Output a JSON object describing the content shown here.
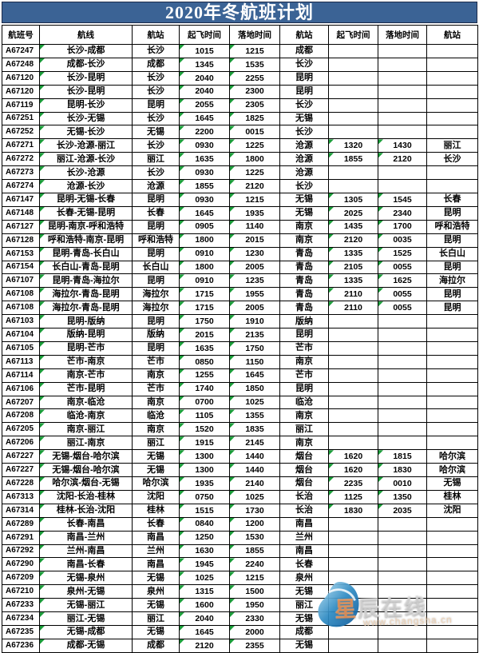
{
  "title": "2020年冬航班计划",
  "colors": {
    "title_bar": "#3b6395",
    "flag_triangle": "#1b9e3a"
  },
  "watermark": {
    "brand": "星辰在线",
    "url": "www.changsha.cn"
  },
  "table": {
    "columns": [
      "航班号",
      "航线",
      "航站",
      "起飞时间",
      "落地时间",
      "航站",
      "起飞时间",
      "落地时间",
      "航站"
    ],
    "rows": [
      [
        "A67247",
        "长沙-成都",
        "长沙",
        "1015",
        "1215",
        "成都",
        "",
        "",
        ""
      ],
      [
        "A67248",
        "成都-长沙",
        "成都",
        "1345",
        "1535",
        "长沙",
        "",
        "",
        ""
      ],
      [
        "A67120",
        "长沙-昆明",
        "长沙",
        "2040",
        "2255",
        "昆明",
        "",
        "",
        ""
      ],
      [
        "A67120",
        "长沙-昆明",
        "长沙",
        "2040",
        "2300",
        "昆明",
        "",
        "",
        ""
      ],
      [
        "A67119",
        "昆明-长沙",
        "昆明",
        "2055",
        "2305",
        "长沙",
        "",
        "",
        ""
      ],
      [
        "A67251",
        "长沙-无锡",
        "长沙",
        "1645",
        "1825",
        "无锡",
        "",
        "",
        ""
      ],
      [
        "A67252",
        "无锡-长沙",
        "无锡",
        "2200",
        "0015",
        "长沙",
        "",
        "",
        ""
      ],
      [
        "A67271",
        "长沙-沧源-丽江",
        "长沙",
        "0930",
        "1225",
        "沧源",
        "1320",
        "1430",
        "丽江"
      ],
      [
        "A67272",
        "丽江-沧源-长沙",
        "丽江",
        "1635",
        "1800",
        "沧源",
        "1855",
        "2120",
        "长沙"
      ],
      [
        "A67273",
        "长沙-沧源",
        "长沙",
        "0930",
        "1225",
        "沧源",
        "",
        "",
        ""
      ],
      [
        "A67274",
        "沧源-长沙",
        "沧源",
        "1855",
        "2120",
        "长沙",
        "",
        "",
        ""
      ],
      [
        "A67147",
        "昆明-无锡-长春",
        "昆明",
        "0930",
        "1215",
        "无锡",
        "1305",
        "1545",
        "长春"
      ],
      [
        "A67148",
        "长春-无锡-昆明",
        "长春",
        "1645",
        "1935",
        "无锡",
        "2025",
        "2340",
        "昆明"
      ],
      [
        "A67127",
        "昆明-南京-呼和浩特",
        "昆明",
        "0905",
        "1140",
        "南京",
        "1435",
        "1700",
        "呼和浩特"
      ],
      [
        "A67128",
        "呼和浩特-南京-昆明",
        "呼和浩特",
        "1800",
        "2015",
        "南京",
        "2120",
        "0035",
        "昆明"
      ],
      [
        "A67153",
        "昆明-青岛-长白山",
        "昆明",
        "0910",
        "1230",
        "青岛",
        "1335",
        "1525",
        "长白山"
      ],
      [
        "A67154",
        "长白山-青岛-昆明",
        "长白山",
        "1800",
        "2005",
        "青岛",
        "2105",
        "0055",
        "昆明"
      ],
      [
        "A67107",
        "昆明-青岛-海拉尔",
        "昆明",
        "0910",
        "1235",
        "青岛",
        "1335",
        "1625",
        "海拉尔"
      ],
      [
        "A67108",
        "海拉尔-青岛-昆明",
        "海拉尔",
        "1715",
        "1955",
        "青岛",
        "2110",
        "0055",
        "昆明"
      ],
      [
        "A67108",
        "海拉尔-青岛-昆明",
        "海拉尔",
        "1715",
        "2005",
        "青岛",
        "2110",
        "0055",
        "昆明"
      ],
      [
        "A67103",
        "昆明-版纳",
        "昆明",
        "1750",
        "1910",
        "版纳",
        "",
        "",
        ""
      ],
      [
        "A67104",
        "版纳-昆明",
        "版纳",
        "2015",
        "2135",
        "昆明",
        "",
        "",
        ""
      ],
      [
        "A67105",
        "昆明-芒市",
        "昆明",
        "1635",
        "1750",
        "芒市",
        "",
        "",
        ""
      ],
      [
        "A67113",
        "芒市-南京",
        "芒市",
        "0850",
        "1150",
        "南京",
        "",
        "",
        ""
      ],
      [
        "A67114",
        "南京-芒市",
        "南京",
        "1255",
        "1645",
        "芒市",
        "",
        "",
        ""
      ],
      [
        "A67106",
        "芒市-昆明",
        "芒市",
        "1740",
        "1850",
        "昆明",
        "",
        "",
        ""
      ],
      [
        "A67207",
        "南京-临沧",
        "南京",
        "0700",
        "1025",
        "临沧",
        "",
        "",
        ""
      ],
      [
        "A67208",
        "临沧-南京",
        "临沧",
        "1105",
        "1355",
        "南京",
        "",
        "",
        ""
      ],
      [
        "A67205",
        "南京-丽江",
        "南京",
        "1520",
        "1835",
        "丽江",
        "",
        "",
        ""
      ],
      [
        "A67206",
        "丽江-南京",
        "丽江",
        "1915",
        "2145",
        "南京",
        "",
        "",
        ""
      ],
      [
        "A67227",
        "无锡-烟台-哈尔滨",
        "无锡",
        "1300",
        "1440",
        "烟台",
        "1620",
        "1815",
        "哈尔滨"
      ],
      [
        "A67227",
        "无锡-烟台-哈尔滨",
        "无锡",
        "1300",
        "1440",
        "烟台",
        "1620",
        "1830",
        "哈尔滨"
      ],
      [
        "A67228",
        "哈尔滨-烟台-无锡",
        "哈尔滨",
        "1935",
        "2140",
        "烟台",
        "2235",
        "0010",
        "无锡"
      ],
      [
        "A67313",
        "沈阳-长治-桂林",
        "沈阳",
        "0750",
        "1025",
        "长治",
        "1125",
        "1350",
        "桂林"
      ],
      [
        "A67314",
        "桂林-长治-沈阳",
        "桂林",
        "1515",
        "1730",
        "长治",
        "1830",
        "2035",
        "沈阳"
      ],
      [
        "A67289",
        "长春-南昌",
        "长春",
        "0840",
        "1200",
        "南昌",
        "",
        "",
        ""
      ],
      [
        "A67291",
        "南昌-兰州",
        "南昌",
        "1250",
        "1530",
        "兰州",
        "",
        "",
        ""
      ],
      [
        "A67292",
        "兰州-南昌",
        "兰州",
        "1630",
        "1855",
        "南昌",
        "",
        "",
        ""
      ],
      [
        "A67290",
        "南昌-长春",
        "南昌",
        "1945",
        "2240",
        "长春",
        "",
        "",
        ""
      ],
      [
        "A67209",
        "无锡-泉州",
        "无锡",
        "1025",
        "1215",
        "泉州",
        "",
        "",
        ""
      ],
      [
        "A67210",
        "泉州-无锡",
        "泉州",
        "1315",
        "1500",
        "无锡",
        "",
        "",
        ""
      ],
      [
        "A67233",
        "无锡-丽江",
        "无锡",
        "1600",
        "1950",
        "丽江",
        "",
        "",
        ""
      ],
      [
        "A67234",
        "丽江-无锡",
        "丽江",
        "2040",
        "2330",
        "无锡",
        "",
        "",
        ""
      ],
      [
        "A67235",
        "无锡-成都",
        "无锡",
        "1645",
        "2000",
        "成都",
        "",
        "",
        ""
      ],
      [
        "A67236",
        "成都-无锡",
        "成都",
        "2120",
        "2355",
        "无锡",
        "",
        "",
        ""
      ]
    ]
  }
}
